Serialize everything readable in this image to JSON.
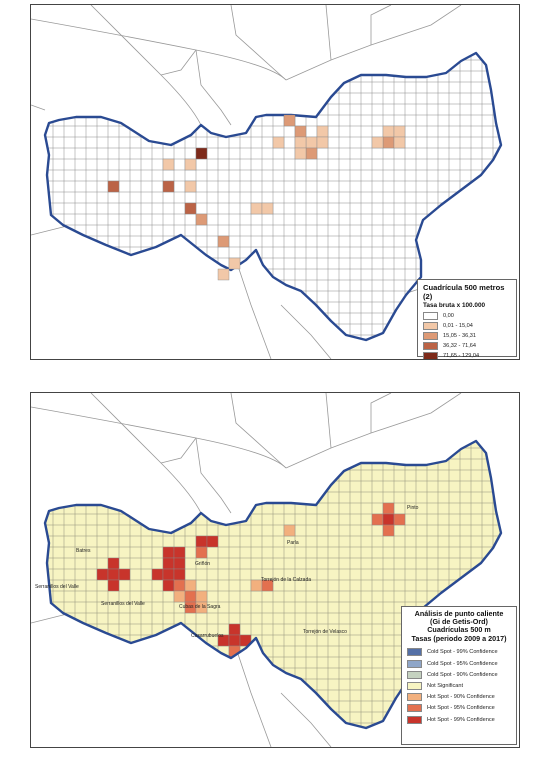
{
  "top_map": {
    "legend": {
      "title": "Cuadrícula 500 metros (2)",
      "subtitle": "Tasa bruta x 100.000",
      "classes": [
        {
          "label": "0,00",
          "color": "#ffffff"
        },
        {
          "label": "0,01 - 15,04",
          "color": "#f2c8a8"
        },
        {
          "label": "15,05 - 36,31",
          "color": "#dd9a76"
        },
        {
          "label": "36,32 - 71,64",
          "color": "#bb6346"
        },
        {
          "label": "71,65 - 129,04",
          "color": "#7d2a1a"
        }
      ]
    }
  },
  "bottom_map": {
    "legend": {
      "title_lines": [
        "Análisis de punto caliente",
        "(Gi de Getis-Ord)",
        "Cuadrículas 500 m",
        "Tasas (periodo 2009 a 2017)"
      ],
      "classes": [
        {
          "label": "Cold Spot - 99% Confidence",
          "color": "#5470a6"
        },
        {
          "label": "Cold Spot - 95% Confidence",
          "color": "#8fa6c8"
        },
        {
          "label": "Cold Spot - 90% Confidence",
          "color": "#c5d2c0"
        },
        {
          "label": "Not Significant",
          "color": "#f7f4c2"
        },
        {
          "label": "Hot Spot - 90% Confidence",
          "color": "#f2b07e"
        },
        {
          "label": "Hot Spot - 95% Confidence",
          "color": "#e3704f"
        },
        {
          "label": "Hot Spot - 99% Confidence",
          "color": "#c8342b"
        }
      ]
    },
    "place_labels": [
      "Batres",
      "Serranillos del Valle",
      "Serranillos del Valle",
      "Griñón",
      "Casarrubuelos",
      "Cubas de la Sagra",
      "Torrejón de la Calzada",
      "Parla",
      "Pinto",
      "Torrejón de Velasco"
    ]
  }
}
